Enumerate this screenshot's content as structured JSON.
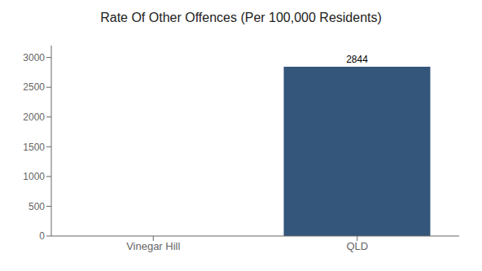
{
  "chart_data": {
    "type": "bar",
    "title": "Rate Of Other Offences (Per 100,000 Residents)",
    "categories": [
      "Vinegar Hill",
      "QLD"
    ],
    "values": [
      0,
      2844
    ],
    "color": "#34567a",
    "ylim": [
      0,
      3200
    ],
    "yticks": [
      0,
      500,
      1000,
      1500,
      2000,
      2500,
      3000
    ],
    "grid": false,
    "data_labels": true
  }
}
